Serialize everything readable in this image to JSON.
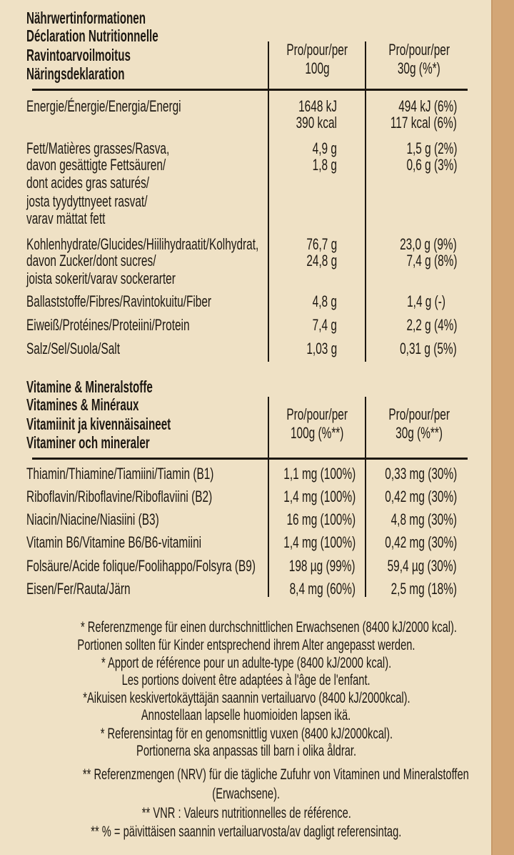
{
  "nutrition": {
    "titles": [
      "Nährwertinformationen",
      "Déclaration Nutritionnelle",
      "Ravintoarvoilmoitus",
      "Näringsdeklaration"
    ],
    "col1_header": [
      "Pro/pour/per",
      "100g"
    ],
    "col2_header": [
      "Pro/pour/per",
      "30g (%*)"
    ],
    "rows": [
      {
        "label": [
          "Energie/Énergie/Energia/Energi"
        ],
        "per100": [
          "1648 kJ",
          "390 kcal"
        ],
        "per30": [
          "494 kJ (6%)",
          "117 kcal (6%)"
        ]
      },
      {
        "label": [
          "Fett/Matières grasses/Rasva,",
          "davon gesättigte Fettsäuren/",
          "dont acides gras saturés/",
          "josta tyydyttnyeet rasvat/",
          "varav mättat fett"
        ],
        "per100": [
          "4,9 g",
          "1,8 g"
        ],
        "per30": [
          "1,5 g (2%)",
          "0,6 g (3%)"
        ]
      },
      {
        "label": [
          "Kohlenhydrate/Glucides/Hiilihydraatit/Kolhydrat,",
          "davon Zucker/dont sucres/",
          "joista sokerit/varav sockerarter"
        ],
        "per100": [
          "76,7 g",
          "24,8 g"
        ],
        "per30": [
          "23,0 g (9%)",
          "7,4 g (8%)"
        ]
      },
      {
        "label": [
          "Ballaststoffe/Fibres/Ravintokuitu/Fiber"
        ],
        "per100": [
          "4,8 g"
        ],
        "per30": [
          "1,4 g (-)"
        ]
      },
      {
        "label": [
          "Eiweiß/Protéines/Proteiini/Protein"
        ],
        "per100": [
          "7,4 g"
        ],
        "per30": [
          "2,2 g (4%)"
        ]
      },
      {
        "label": [
          "Salz/Sel/Suola/Salt"
        ],
        "per100": [
          "1,03 g"
        ],
        "per30": [
          "0,31 g (5%)"
        ]
      }
    ]
  },
  "vitamins": {
    "titles": [
      "Vitamine & Mineralstoffe",
      "Vitamines & Minéraux",
      "Vitamiinit ja kivennäisaineet",
      "Vitaminer och mineraler"
    ],
    "col1_header": [
      "Pro/pour/per",
      "100g  (%**)"
    ],
    "col2_header": [
      "Pro/pour/per",
      "30g (%**)"
    ],
    "rows": [
      {
        "label": "Thiamin/Thiamine/Tiamiini/Tiamin (B1)",
        "per100": "1,1 mg (100%)",
        "per30": "0,33 mg (30%)"
      },
      {
        "label": "Riboflavin/Riboflavine/Riboflaviini (B2)",
        "per100": "1,4 mg (100%)",
        "per30": "0,42 mg (30%)"
      },
      {
        "label": "Niacin/Niacine/Niasiini (B3)",
        "per100": "16 mg (100%)",
        "per30": "4,8 mg (30%)"
      },
      {
        "label": "Vitamin B6/Vitamine B6/B6-vitamiini",
        "per100": "1,4 mg (100%)",
        "per30": "0,42 mg (30%)"
      },
      {
        "label": "Folsäure/Acide folique/Foolihappo/Folsyra (B9)",
        "per100": "198 µg (99%)",
        "per30": "59,4 µg (30%)"
      },
      {
        "label": "Eisen/Fer/Rauta/Järn",
        "per100": "8,4 mg (60%)",
        "per30": "2,5 mg (18%)"
      }
    ]
  },
  "footnotes": [
    "* Referenzmenge für einen durchschnittlichen Erwachsenen (8400 kJ/2000 kcal).",
    "Portionen sollten für Kinder entsprechend ihrem Alter angepasst werden.",
    "* Apport de référence pour un adulte-type (8400 kJ/2000 kcal).",
    "Les portions doivent être adaptées à l'âge de l'enfant.",
    "*Aikuisen keskivertokäyttäjän saannin vertailuarvo (8400 kJ/2000kcal).",
    "Annostellaan lapselle huomioiden lapsen ikä.",
    "* Referensintag för en genomsnittlig vuxen (8400 kJ/2000kcal).",
    "Portionerna ska anpassas till barn i olika åldrar.",
    "** Referenzmengen (NRV) für die tägliche Zufuhr von Vitaminen und Mineralstoffen",
    "(Erwachsene).",
    "** VNR : Valeurs nutritionnelles de référence.",
    "** % = päivittäisen saannin vertailuarvosta/av dagligt referensintag."
  ],
  "colors": {
    "background": "#efe1c5",
    "edge_strip": "#d3a676",
    "text": "#1d1812"
  }
}
